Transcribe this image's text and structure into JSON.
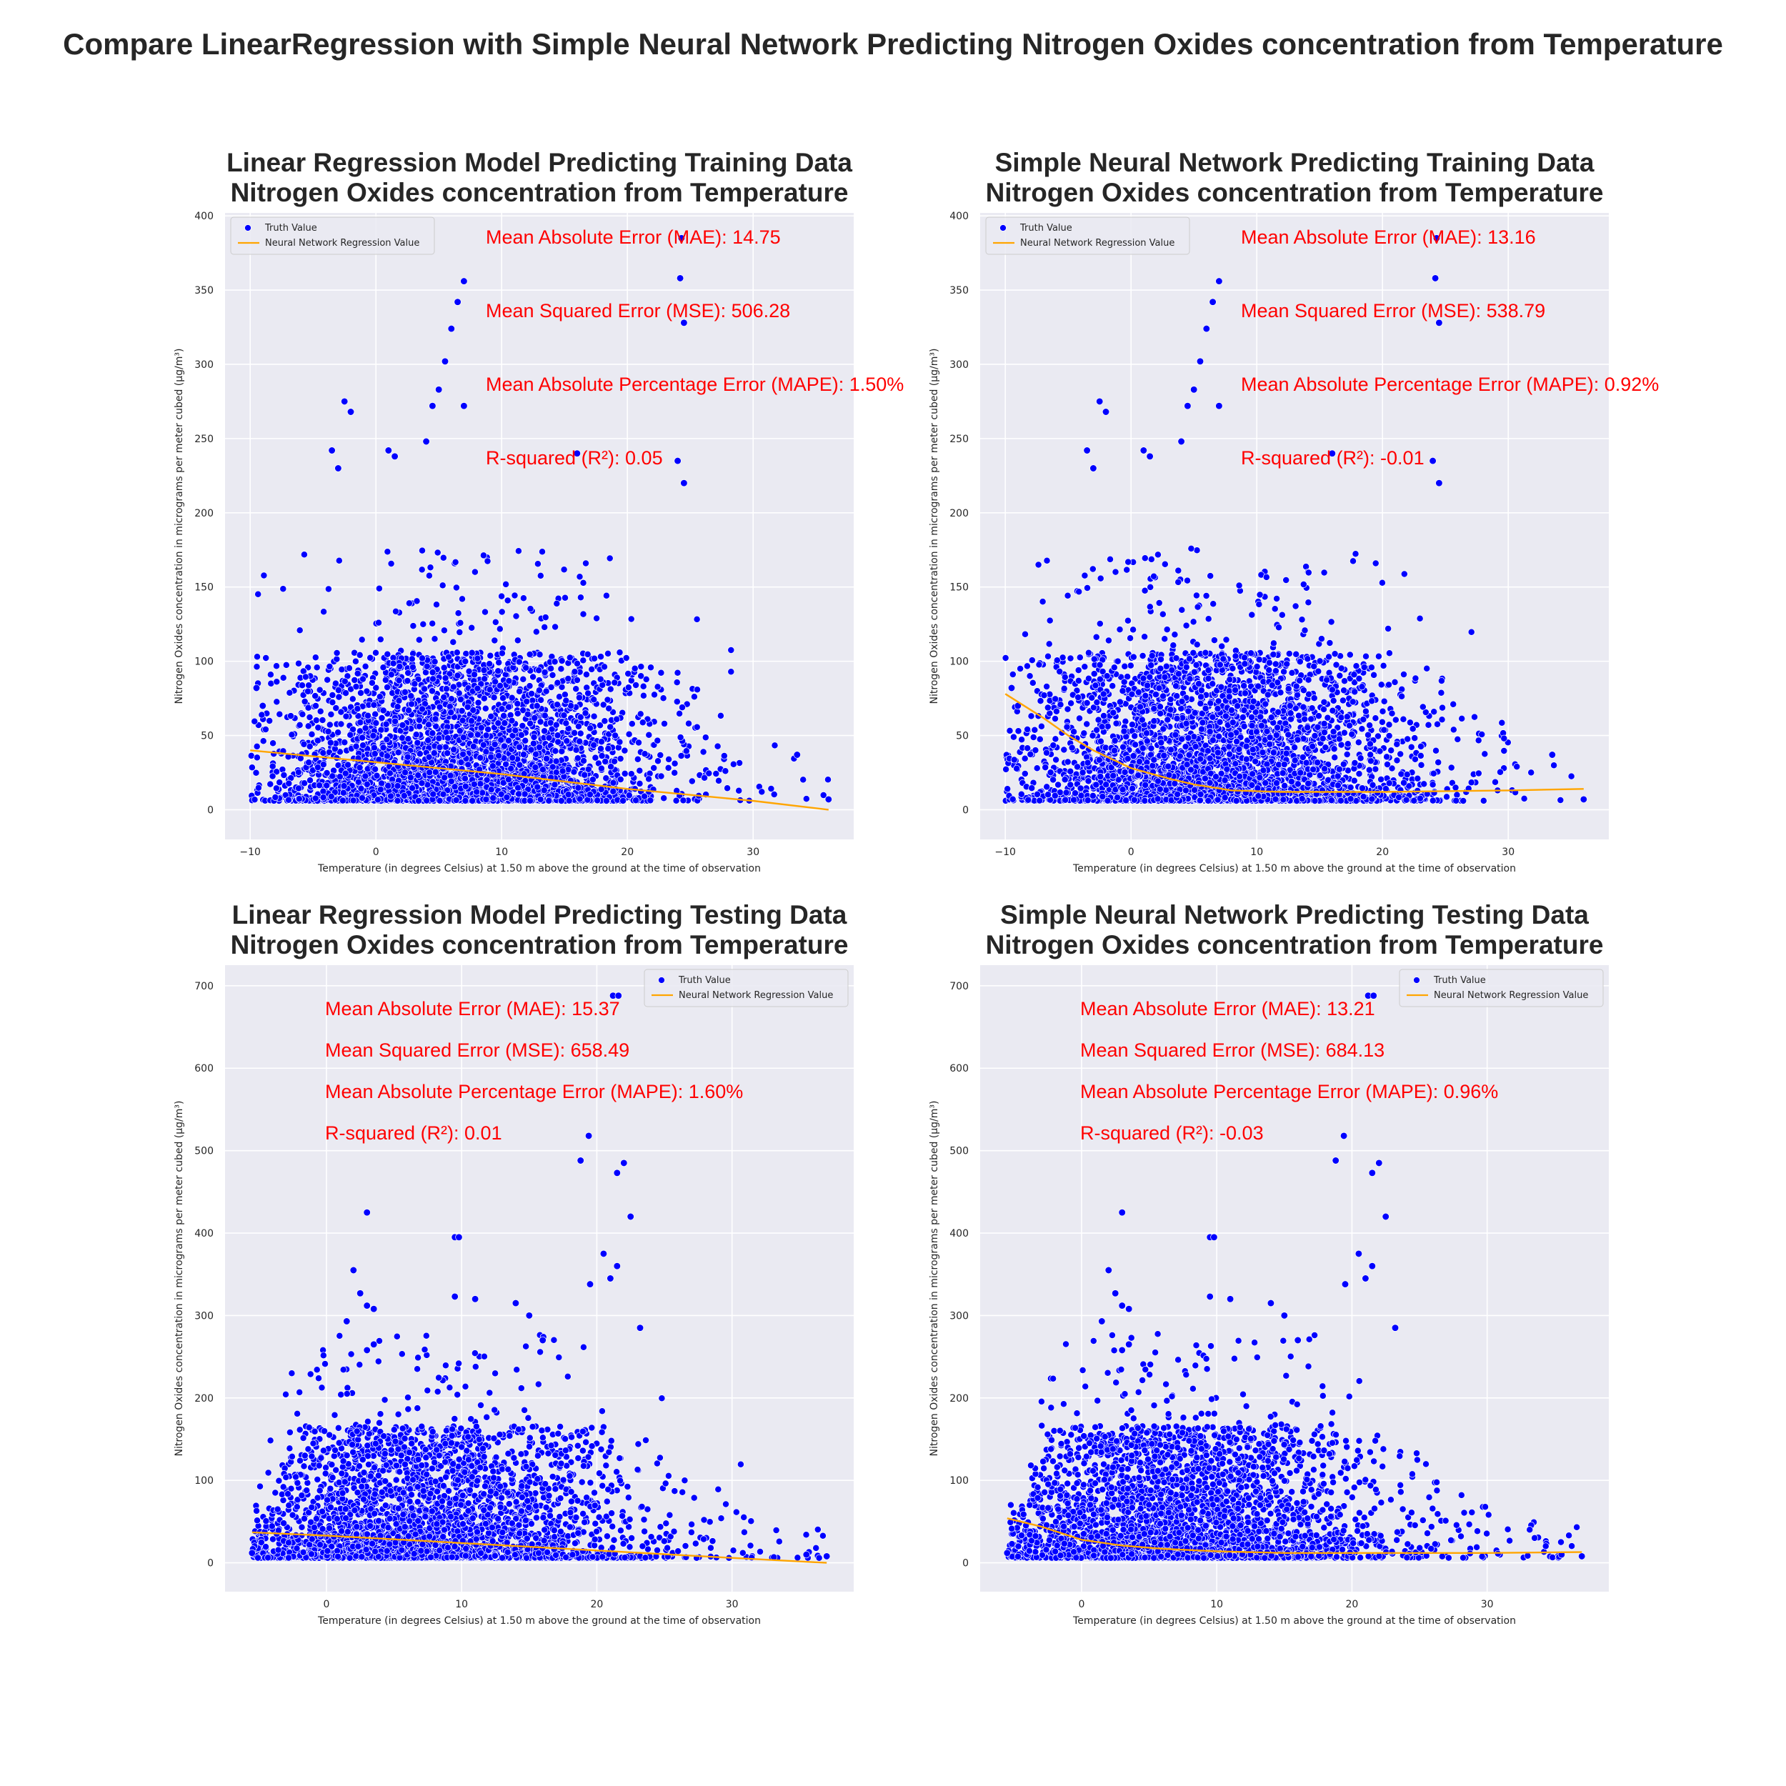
{
  "figure": {
    "suptitle": "Compare LinearRegression with Simple Neural Network Predicting Nitrogen Oxides concentration from Temperature"
  },
  "colors": {
    "background": "#ffffff",
    "axes_face": "#eaeaf2",
    "grid": "#ffffff",
    "points": "#0000ff",
    "point_edge": "#ffffff",
    "line": "#ffa500",
    "metrics_text": "#ff0000",
    "text": "#262626"
  },
  "chart_data": [
    {
      "type": "scatter",
      "title_lines": [
        "Linear Regression Model Predicting Training Data",
        "Nitrogen Oxides concentration from Temperature"
      ],
      "xlabel": "Temperature (in degrees Celsius) at 1.50 m above the ground at the time of observation",
      "ylabel": "Nitrogen Oxides concentration in micrograms per meter cubed (µg/m³)",
      "xlim": [
        -12,
        38
      ],
      "ylim": [
        -20,
        402
      ],
      "xticks": [
        -10,
        0,
        10,
        20,
        30
      ],
      "xtick_labels": [
        "−10",
        "0",
        "10",
        "20",
        "30"
      ],
      "yticks": [
        0,
        50,
        100,
        150,
        200,
        250,
        300,
        350,
        400
      ],
      "grid": true,
      "legend": {
        "position": "top-left",
        "entries": [
          "Truth Value",
          "Neural Network Regression Value"
        ]
      },
      "metrics": [
        "Mean Absolute Error (MAE): 14.75",
        "Mean Squared Error (MSE): 506.28",
        "Mean Absolute Percentage Error (MAPE): 1.50%",
        "R-squared (R²): 0.05"
      ],
      "metrics_anchor": "upper-middle",
      "series": [
        {
          "name": "Truth Value",
          "kind": "scatter",
          "temp_range": [
            -10,
            36
          ],
          "typical_max": 100,
          "extremes": [
            [
              7,
              356
            ],
            [
              6.5,
              342
            ],
            [
              6,
              324
            ],
            [
              5.5,
              302
            ],
            [
              5,
              283
            ],
            [
              4.5,
              272
            ],
            [
              7,
              272
            ],
            [
              -2.5,
              275
            ],
            [
              -2,
              268
            ],
            [
              4,
              248
            ],
            [
              1,
              242
            ],
            [
              1.5,
              238
            ],
            [
              -3.5,
              242
            ],
            [
              -3,
              230
            ],
            [
              24.3,
              385
            ],
            [
              24.2,
              358
            ],
            [
              24.5,
              328
            ],
            [
              16,
              240
            ],
            [
              24,
              235
            ],
            [
              24.5,
              220
            ],
            [
              -9.5,
              82
            ],
            [
              -9,
              70
            ],
            [
              33.5,
              37
            ],
            [
              36,
              7
            ]
          ]
        },
        {
          "name": "Neural Network Regression Value",
          "kind": "line",
          "x": [
            -10,
            0,
            10,
            20,
            30,
            36
          ],
          "y": [
            40,
            32,
            24,
            14,
            6,
            0
          ]
        }
      ]
    },
    {
      "type": "scatter",
      "title_lines": [
        "Simple Neural Network Predicting Training Data",
        "Nitrogen Oxides concentration from Temperature"
      ],
      "xlabel": "Temperature (in degrees Celsius) at 1.50 m above the ground at the time of observation",
      "ylabel": "Nitrogen Oxides concentration in micrograms per meter cubed (µg/m³)",
      "xlim": [
        -12,
        38
      ],
      "ylim": [
        -20,
        402
      ],
      "xticks": [
        -10,
        0,
        10,
        20,
        30
      ],
      "xtick_labels": [
        "−10",
        "0",
        "10",
        "20",
        "30"
      ],
      "yticks": [
        0,
        50,
        100,
        150,
        200,
        250,
        300,
        350,
        400
      ],
      "grid": true,
      "legend": {
        "position": "top-left",
        "entries": [
          "Truth Value",
          "Neural Network Regression Value"
        ]
      },
      "metrics": [
        "Mean Absolute Error (MAE): 13.16",
        "Mean Squared Error (MSE): 538.79",
        "Mean Absolute Percentage Error (MAPE): 0.92%",
        "R-squared (R²): -0.01"
      ],
      "metrics_anchor": "upper-middle",
      "series": [
        {
          "name": "Truth Value",
          "kind": "scatter",
          "temp_range": [
            -10,
            36
          ],
          "typical_max": 100,
          "extremes": [
            [
              7,
              356
            ],
            [
              6.5,
              342
            ],
            [
              6,
              324
            ],
            [
              5.5,
              302
            ],
            [
              5,
              283
            ],
            [
              4.5,
              272
            ],
            [
              7,
              272
            ],
            [
              -2.5,
              275
            ],
            [
              -2,
              268
            ],
            [
              4,
              248
            ],
            [
              1,
              242
            ],
            [
              1.5,
              238
            ],
            [
              -3.5,
              242
            ],
            [
              -3,
              230
            ],
            [
              24.3,
              385
            ],
            [
              24.2,
              358
            ],
            [
              24.5,
              328
            ],
            [
              16,
              240
            ],
            [
              24,
              235
            ],
            [
              24.5,
              220
            ],
            [
              -9.5,
              82
            ],
            [
              -9,
              70
            ],
            [
              33.5,
              37
            ],
            [
              36,
              7
            ]
          ]
        },
        {
          "name": "Neural Network Regression Value",
          "kind": "line",
          "x": [
            -10,
            -7,
            -5,
            -3,
            0,
            3,
            5,
            8,
            12,
            20,
            30,
            36
          ],
          "y": [
            78,
            62,
            50,
            40,
            28,
            21,
            17,
            13,
            12,
            12,
            13,
            14
          ]
        }
      ]
    },
    {
      "type": "scatter",
      "title_lines": [
        "Linear Regression Model Predicting Testing Data",
        "Nitrogen Oxides concentration from Temperature"
      ],
      "xlabel": "Temperature (in degrees Celsius) at 1.50 m above the ground at the time of observation",
      "ylabel": "Nitrogen Oxides concentration in micrograms per meter cubed (µg/m³)",
      "xlim": [
        -7.5,
        39
      ],
      "ylim": [
        -35,
        725
      ],
      "xticks": [
        0,
        10,
        20,
        30
      ],
      "xtick_labels": [
        "0",
        "10",
        "20",
        "30"
      ],
      "yticks": [
        0,
        100,
        200,
        300,
        400,
        500,
        600,
        700
      ],
      "grid": true,
      "legend": {
        "position": "top-right",
        "entries": [
          "Truth Value",
          "Neural Network Regression Value"
        ]
      },
      "metrics": [
        "Mean Absolute Error (MAE): 15.37",
        "Mean Squared Error (MSE): 658.49",
        "Mean Absolute Percentage Error (MAPE): 1.60%",
        "R-squared (R²): 0.01"
      ],
      "metrics_anchor": "upper-left",
      "series": [
        {
          "name": "Truth Value",
          "kind": "scatter",
          "temp_range": [
            -5.5,
            37
          ],
          "typical_max": 160,
          "extremes": [
            [
              21.2,
              688
            ],
            [
              21.6,
              688
            ],
            [
              19.4,
              518
            ],
            [
              18.8,
              488
            ],
            [
              22,
              485
            ],
            [
              21.5,
              473
            ],
            [
              22.5,
              420
            ],
            [
              3,
              425
            ],
            [
              9.5,
              395
            ],
            [
              9.8,
              395
            ],
            [
              20.5,
              375
            ],
            [
              21,
              345
            ],
            [
              19.5,
              338
            ],
            [
              21.5,
              360
            ],
            [
              2,
              355
            ],
            [
              2.5,
              327
            ],
            [
              1.5,
              293
            ],
            [
              3,
              312
            ],
            [
              3.5,
              308
            ],
            [
              9.5,
              323
            ],
            [
              11,
              320
            ],
            [
              14,
              315
            ],
            [
              15,
              300
            ],
            [
              23.2,
              285
            ],
            [
              3.5,
              265
            ],
            [
              3,
              258
            ],
            [
              16,
              270
            ],
            [
              -5.5,
              12
            ],
            [
              35.5,
              10
            ],
            [
              37,
              8
            ]
          ]
        },
        {
          "name": "Neural Network Regression Value",
          "kind": "line",
          "x": [
            -5.5,
            0,
            10,
            20,
            30,
            37
          ],
          "y": [
            37,
            33,
            24,
            15,
            6,
            0
          ]
        }
      ]
    },
    {
      "type": "scatter",
      "title_lines": [
        "Simple Neural Network Predicting Testing Data",
        "Nitrogen Oxides concentration from Temperature"
      ],
      "xlabel": "Temperature (in degrees Celsius) at 1.50 m above the ground at the time of observation",
      "ylabel": "Nitrogen Oxides concentration in micrograms per meter cubed (µg/m³)",
      "xlim": [
        -7.5,
        39
      ],
      "ylim": [
        -35,
        725
      ],
      "xticks": [
        0,
        10,
        20,
        30
      ],
      "xtick_labels": [
        "0",
        "10",
        "20",
        "30"
      ],
      "yticks": [
        0,
        100,
        200,
        300,
        400,
        500,
        600,
        700
      ],
      "grid": true,
      "legend": {
        "position": "top-right",
        "entries": [
          "Truth Value",
          "Neural Network Regression Value"
        ]
      },
      "metrics": [
        "Mean Absolute Error (MAE): 13.21",
        "Mean Squared Error (MSE): 684.13",
        "Mean Absolute Percentage Error (MAPE): 0.96%",
        "R-squared (R²): -0.03"
      ],
      "metrics_anchor": "upper-left",
      "series": [
        {
          "name": "Truth Value",
          "kind": "scatter",
          "temp_range": [
            -5.5,
            37
          ],
          "typical_max": 160,
          "extremes": [
            [
              21.2,
              688
            ],
            [
              21.6,
              688
            ],
            [
              19.4,
              518
            ],
            [
              18.8,
              488
            ],
            [
              22,
              485
            ],
            [
              21.5,
              473
            ],
            [
              22.5,
              420
            ],
            [
              3,
              425
            ],
            [
              9.5,
              395
            ],
            [
              9.8,
              395
            ],
            [
              20.5,
              375
            ],
            [
              21,
              345
            ],
            [
              19.5,
              338
            ],
            [
              21.5,
              360
            ],
            [
              2,
              355
            ],
            [
              2.5,
              327
            ],
            [
              1.5,
              293
            ],
            [
              3,
              312
            ],
            [
              3.5,
              308
            ],
            [
              9.5,
              323
            ],
            [
              11,
              320
            ],
            [
              14,
              315
            ],
            [
              15,
              300
            ],
            [
              23.2,
              285
            ],
            [
              3.5,
              265
            ],
            [
              3,
              258
            ],
            [
              16,
              270
            ],
            [
              -5.5,
              12
            ],
            [
              35.5,
              10
            ],
            [
              37,
              8
            ]
          ]
        },
        {
          "name": "Neural Network Regression Value",
          "kind": "line",
          "x": [
            -5.5,
            -3,
            0,
            3,
            6,
            10,
            15,
            20,
            30,
            37
          ],
          "y": [
            54,
            44,
            28,
            21,
            17,
            14,
            12,
            12,
            12,
            13
          ]
        }
      ]
    }
  ]
}
